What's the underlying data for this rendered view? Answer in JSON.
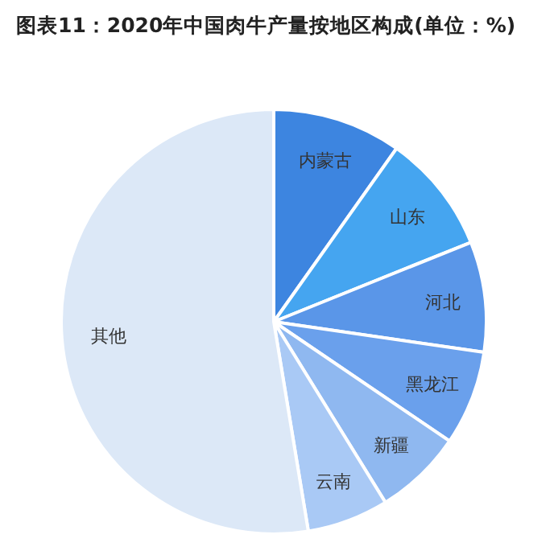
{
  "chart_data": {
    "type": "pie",
    "title": "图表11：2020年中国肉牛产量按地区构成(单位：%)",
    "categories": [
      "内蒙古",
      "山东",
      "河北",
      "黑龙江",
      "新疆",
      "云南",
      "其他"
    ],
    "values": [
      9.8,
      9.1,
      8.4,
      7.2,
      6.7,
      6.2,
      52.6
    ],
    "colors": [
      "#3d85e0",
      "#45a5f0",
      "#5a96e8",
      "#6aa0ec",
      "#8fb8f0",
      "#a9c9f5",
      "#dce8f7"
    ]
  }
}
